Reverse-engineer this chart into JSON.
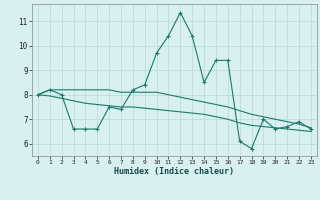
{
  "x": [
    0,
    1,
    2,
    3,
    4,
    5,
    6,
    7,
    8,
    9,
    10,
    11,
    12,
    13,
    14,
    15,
    16,
    17,
    18,
    19,
    20,
    21,
    22,
    23
  ],
  "y_main": [
    8.0,
    8.2,
    8.0,
    6.6,
    6.6,
    6.6,
    7.5,
    7.4,
    8.2,
    8.4,
    9.7,
    10.4,
    11.35,
    10.4,
    8.5,
    9.4,
    9.4,
    6.1,
    5.8,
    7.0,
    6.6,
    6.7,
    6.9,
    6.6
  ],
  "y_trend1": [
    8.0,
    8.2,
    8.2,
    8.2,
    8.2,
    8.2,
    8.2,
    8.1,
    8.1,
    8.1,
    8.1,
    8.0,
    7.9,
    7.8,
    7.7,
    7.6,
    7.5,
    7.35,
    7.2,
    7.1,
    7.0,
    6.9,
    6.8,
    6.65
  ],
  "y_trend2": [
    8.0,
    7.95,
    7.85,
    7.75,
    7.65,
    7.6,
    7.55,
    7.5,
    7.5,
    7.45,
    7.4,
    7.35,
    7.3,
    7.25,
    7.2,
    7.1,
    7.0,
    6.85,
    6.75,
    6.7,
    6.65,
    6.6,
    6.55,
    6.5
  ],
  "color": "#1a7a6a",
  "bg_color": "#d8f0f0",
  "grid_color": "#b8d8d8",
  "xlabel": "Humidex (Indice chaleur)",
  "ylim": [
    5.5,
    11.7
  ],
  "xlim": [
    -0.5,
    23.5
  ],
  "yticks": [
    6,
    7,
    8,
    9,
    10,
    11
  ],
  "xticks": [
    0,
    1,
    2,
    3,
    4,
    5,
    6,
    7,
    8,
    9,
    10,
    11,
    12,
    13,
    14,
    15,
    16,
    17,
    18,
    19,
    20,
    21,
    22,
    23
  ]
}
